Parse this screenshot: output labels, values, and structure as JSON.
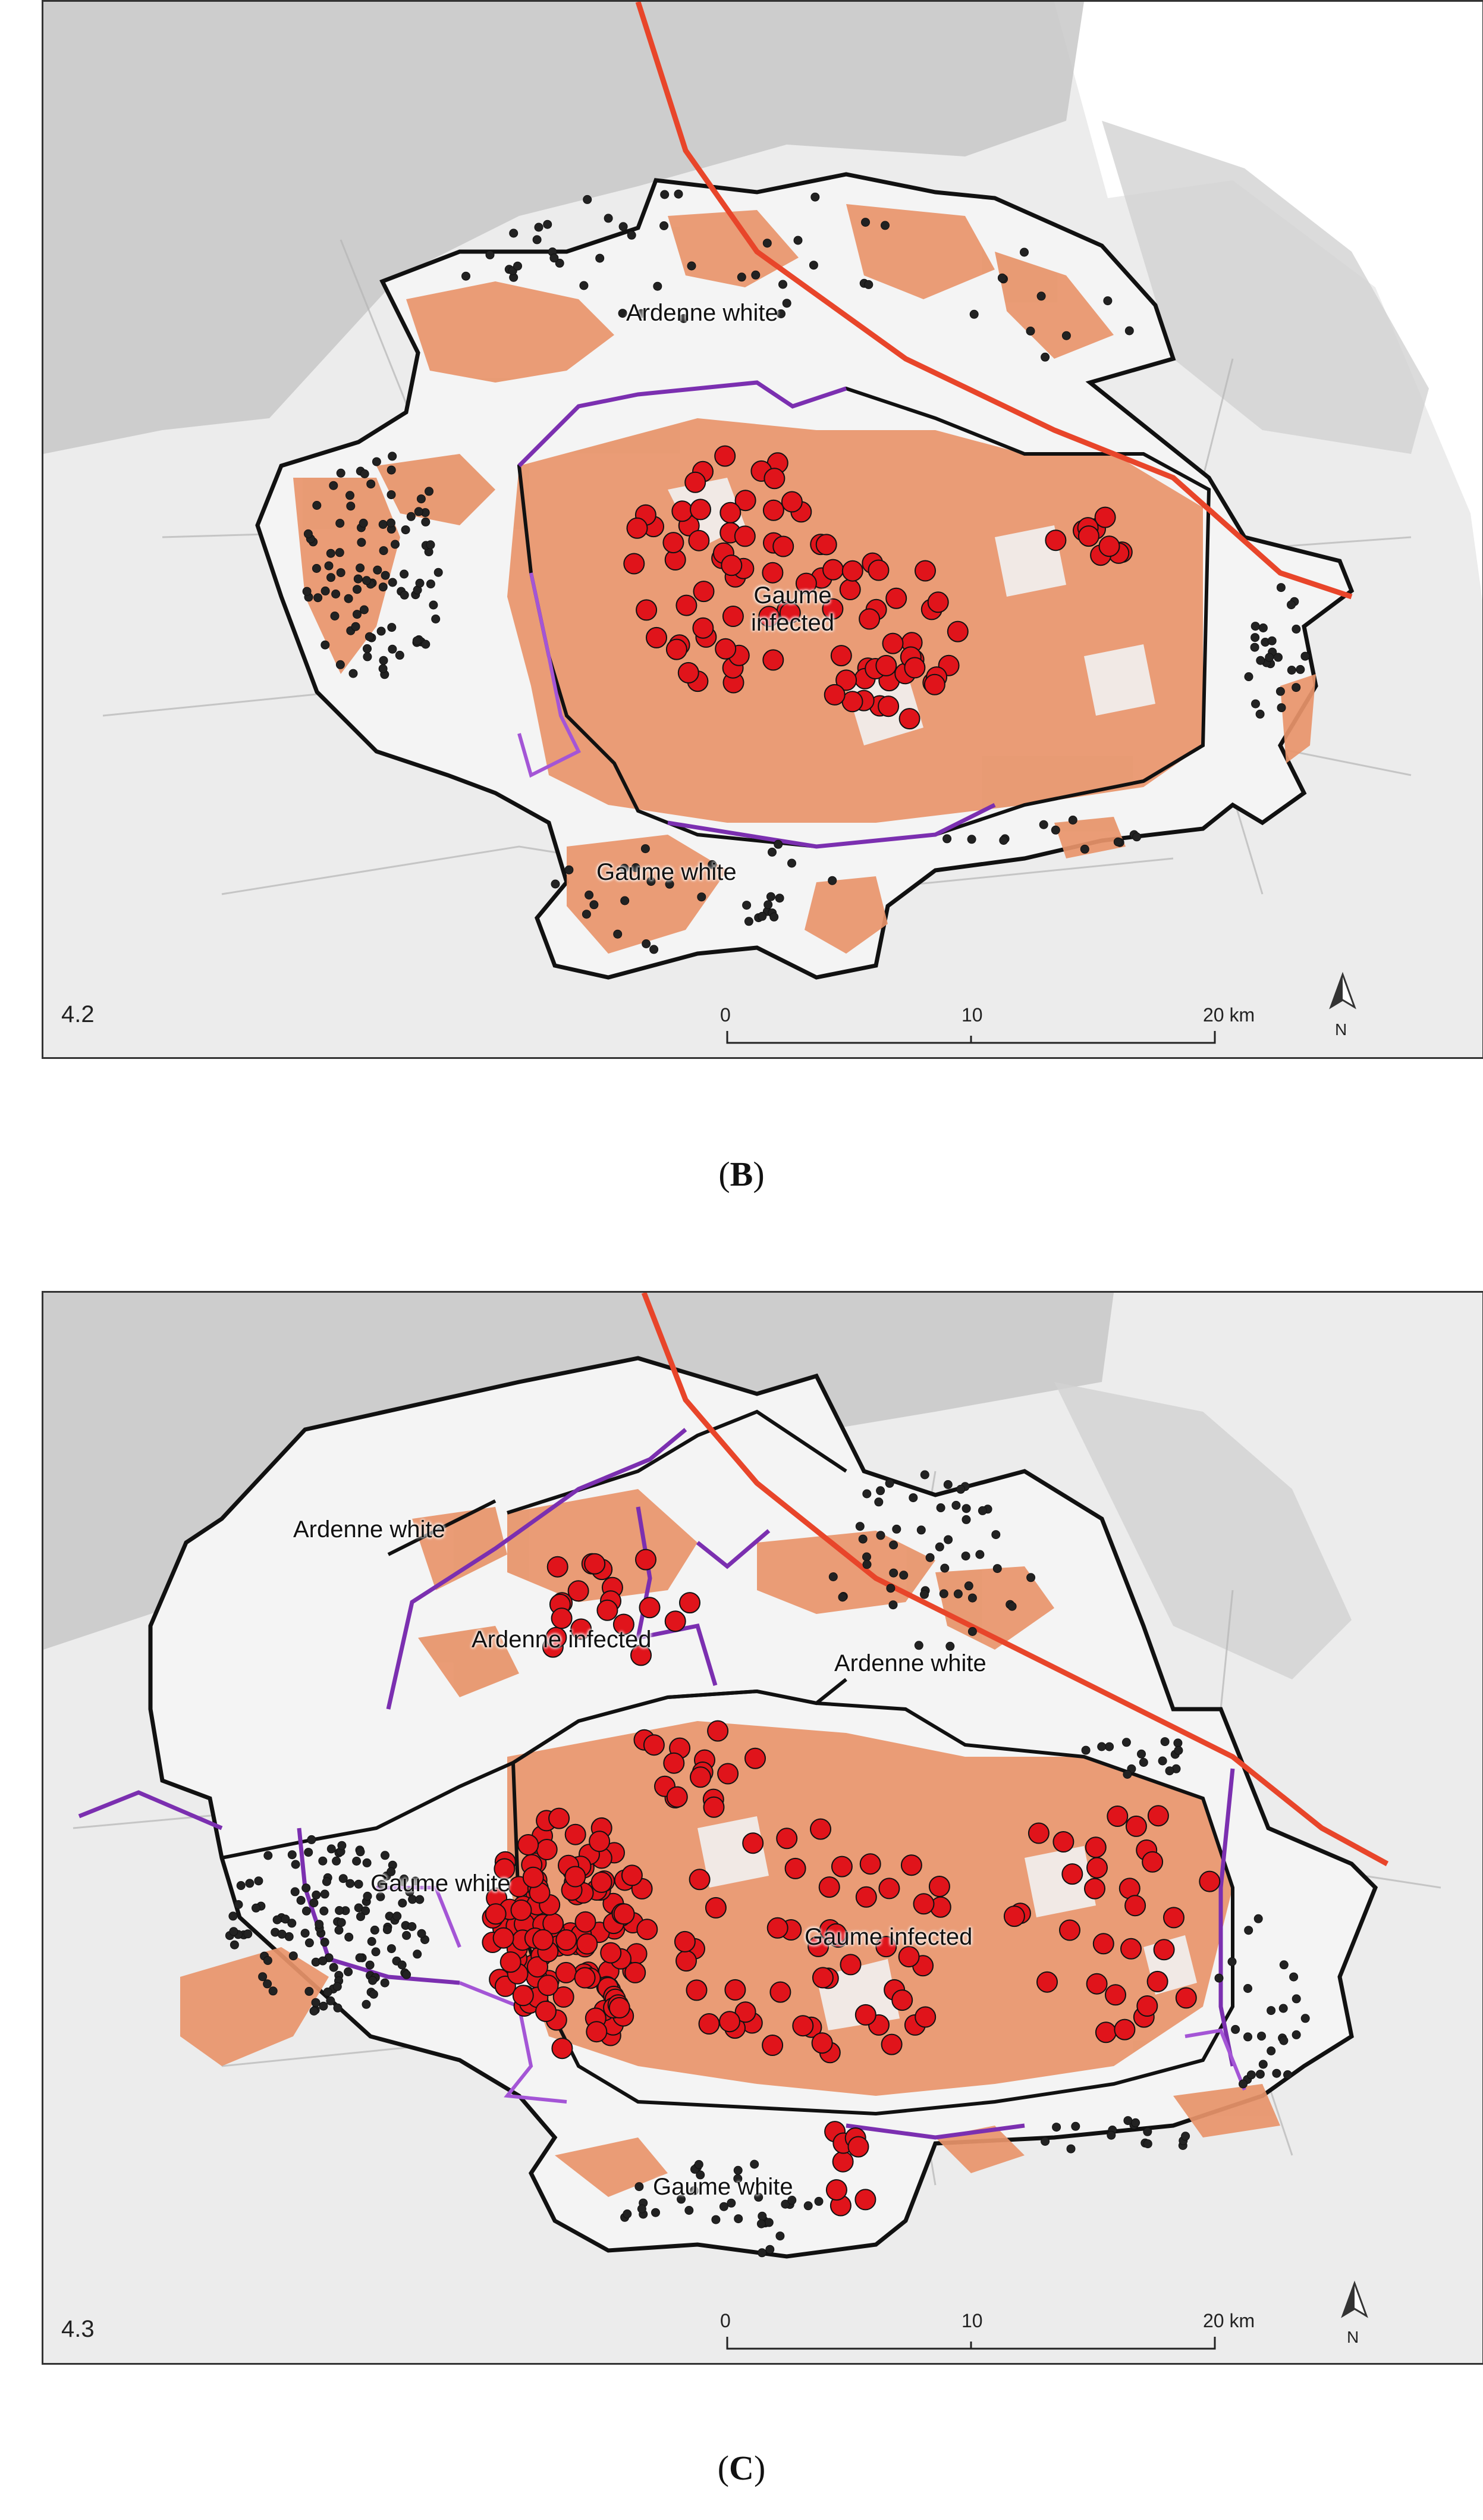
{
  "panels": [
    {
      "id": "4.2",
      "caption_letter": "B",
      "labels": {
        "ardenne_white": "Ardenne white",
        "gaume_infected": "Gaume\ninfected",
        "gaume_white": "Gaume white"
      },
      "scalebar": {
        "ticks": [
          "0",
          "10",
          "20 km"
        ],
        "north": "N"
      }
    },
    {
      "id": "4.3",
      "caption_letter": "C",
      "labels": {
        "ardenne_white_nw": "Ardenne white",
        "ardenne_infected": "Ardenne infected",
        "ardenne_white_e": "Ardenne white",
        "gaume_white_w": "Gaume white",
        "gaume_infected": "Gaume infected",
        "gaume_white_s": "Gaume white"
      },
      "scalebar": {
        "ticks": [
          "0",
          "10",
          "20 km"
        ],
        "north": "N"
      }
    }
  ],
  "colors": {
    "forest_orange": "#e8946a",
    "boundary": "#111111",
    "fence": "#7b2fb0",
    "highway": "#e8452a",
    "infected_dot": "#e0141b",
    "white_dot": "#222222",
    "terrain": "#c9c9c9"
  }
}
